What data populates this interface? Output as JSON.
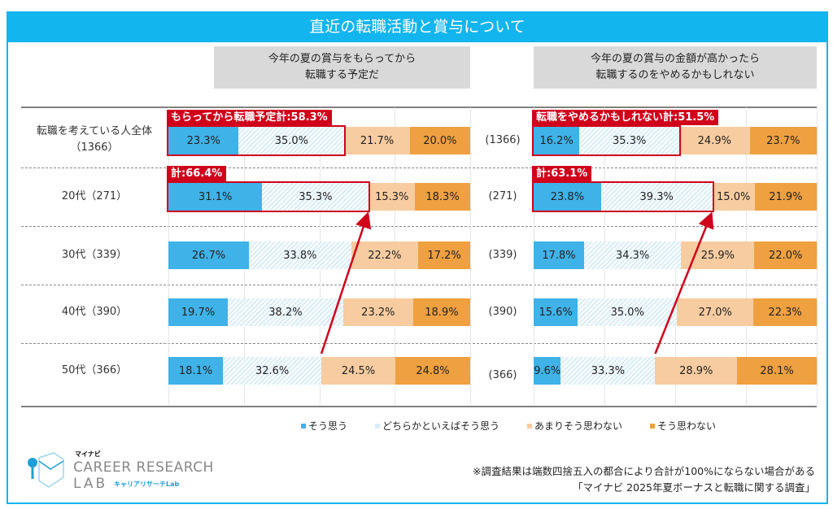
{
  "title": "直近の転職活動と賞与について",
  "chart_data": [
    {
      "type": "bar",
      "stacked": "horizontal-100",
      "title": "今年の夏の賞与をもらってから\n転職する予定だ",
      "categories": [
        "転職を考えている人全体\n（1366）",
        "20代（271）",
        "30代（339）",
        "40代（390）",
        "50代（366）"
      ],
      "series": [
        {
          "name": "そう思う",
          "values": [
            23.3,
            31.1,
            26.7,
            19.7,
            18.1
          ]
        },
        {
          "name": "どちらかといえばそう思う",
          "values": [
            35.0,
            35.3,
            33.8,
            38.2,
            32.6
          ]
        },
        {
          "name": "あまりそう思わない",
          "values": [
            21.7,
            15.3,
            22.2,
            23.2,
            24.5
          ]
        },
        {
          "name": "そう思わない",
          "values": [
            20.0,
            18.3,
            17.2,
            18.9,
            24.8
          ]
        }
      ],
      "annotations": [
        {
          "row": 0,
          "label": "もらってから転職予定計:58.3%"
        },
        {
          "row": 1,
          "label": "計:66.4%"
        }
      ]
    },
    {
      "type": "bar",
      "stacked": "horizontal-100",
      "title": "今年の夏の賞与の金額が高かったら\n転職するのをやめるかもしれない",
      "categories": [
        "(1366)",
        "(271)",
        "(339)",
        "(390)",
        "(366)"
      ],
      "series": [
        {
          "name": "そう思う",
          "values": [
            16.2,
            23.8,
            17.8,
            15.6,
            9.6
          ]
        },
        {
          "name": "どちらかといえばそう思う",
          "values": [
            35.3,
            39.3,
            34.3,
            35.0,
            33.3
          ]
        },
        {
          "name": "あまりそう思わない",
          "values": [
            24.9,
            15.0,
            25.9,
            27.0,
            28.9
          ]
        },
        {
          "name": "そう思わない",
          "values": [
            23.7,
            21.9,
            22.0,
            22.3,
            28.1
          ]
        }
      ],
      "annotations": [
        {
          "row": 0,
          "label": "転職をやめるかもしれない計:51.5%"
        },
        {
          "row": 1,
          "label": "計:63.1%"
        }
      ]
    }
  ],
  "legend": [
    "そう思う",
    "どちらかといえばそう思う",
    "あまりそう思わない",
    "そう思わない"
  ],
  "colors": [
    "#3fb2e8",
    "#d7ecf7",
    "#f7cca0",
    "#efa040"
  ],
  "note": [
    "※調査結果は端数四捨五入の都合により合計が100%にならない場合がある",
    "「マイナビ 2025年夏ボーナスと転職に関する調査」"
  ],
  "logo": {
    "brand": "マイナビ",
    "name1": "CAREER RESEARCH",
    "name2": "LAB",
    "sub": "キャリアリサーチLab"
  }
}
